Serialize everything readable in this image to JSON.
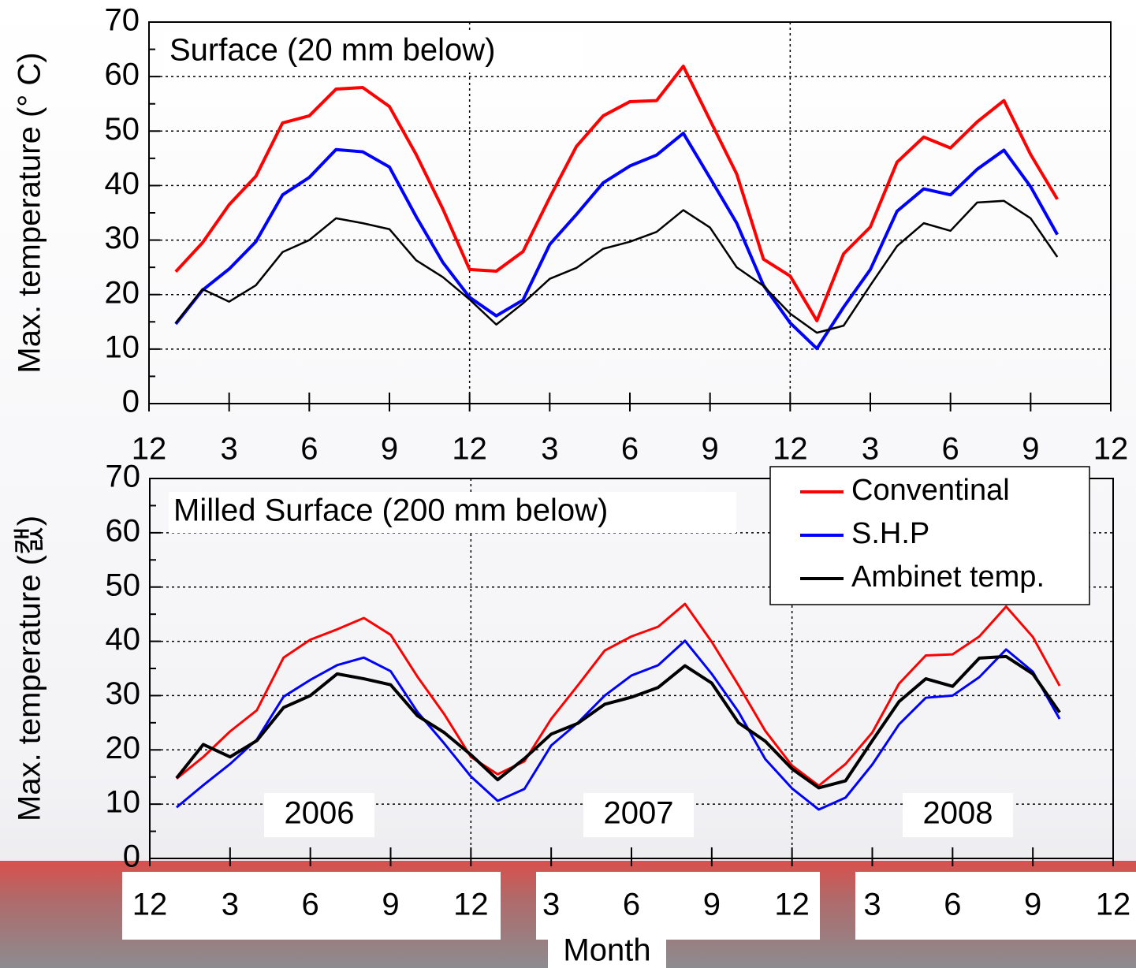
{
  "chart_data": [
    {
      "type": "line",
      "ylabel": "Max. temperature (° C)",
      "annotation": "Surface (20 mm below)",
      "x": [
        1,
        2,
        3,
        4,
        5,
        6,
        7,
        8,
        9,
        10,
        11,
        12,
        13,
        14,
        15,
        16,
        17,
        18,
        19,
        20,
        21,
        22,
        23,
        24,
        25,
        26,
        27,
        28,
        29,
        30,
        31,
        32,
        33,
        34
      ],
      "series": [
        {
          "color": "#ff0000",
          "values": [
            24.2,
            29.5,
            36.5,
            41.7,
            51.5,
            52.8,
            57.7,
            58,
            54.5,
            45.7,
            35.7,
            24.6,
            24.3,
            27.9,
            37.8,
            47.2,
            52.8,
            55.4,
            55.6,
            61.9,
            52,
            42.1,
            26.5,
            23.4,
            15.2,
            27.5,
            32.4,
            44.3,
            48.9,
            46.9,
            51.7,
            55.6,
            45.7,
            37.5
          ]
        },
        {
          "color": "#0000ff",
          "values": [
            14.6,
            20.8,
            24.7,
            29.7,
            38.3,
            41.5,
            46.6,
            46.2,
            43.4,
            34.3,
            25.9,
            19.5,
            16.1,
            19,
            29.2,
            34.7,
            40.5,
            43.6,
            45.6,
            49.6,
            41.4,
            33.1,
            21.7,
            14.8,
            10.1,
            17.7,
            24.6,
            35.3,
            39.4,
            38.3,
            43,
            46.5,
            39.8,
            31
          ]
        },
        {
          "color": "#000000",
          "values": [
            14.8,
            21,
            18.7,
            21.7,
            27.8,
            30,
            34,
            33.1,
            32,
            26.3,
            23.2,
            19.1,
            14.5,
            18.4,
            22.9,
            24.9,
            28.4,
            29.7,
            31.5,
            35.5,
            32.3,
            25,
            21.6,
            16.5,
            13,
            14.3,
            21.7,
            28.9,
            33.1,
            31.7,
            36.9,
            37.2,
            34,
            26.9
          ]
        }
      ],
      "xlim": [
        0,
        36
      ],
      "xticks": [
        {
          "value": 0,
          "label": "12"
        },
        {
          "value": 3,
          "label": "3"
        },
        {
          "value": 6,
          "label": "6"
        },
        {
          "value": 9,
          "label": "9"
        },
        {
          "value": 12,
          "label": "12"
        },
        {
          "value": 15,
          "label": "3"
        },
        {
          "value": 18,
          "label": "6"
        },
        {
          "value": 21,
          "label": "9"
        },
        {
          "value": 24,
          "label": "12"
        },
        {
          "value": 27,
          "label": "3"
        },
        {
          "value": 30,
          "label": "6"
        },
        {
          "value": 33,
          "label": "9"
        },
        {
          "value": 36,
          "label": "12"
        }
      ],
      "ylim": [
        0,
        70
      ],
      "yticks": [
        0,
        10,
        20,
        30,
        40,
        50,
        60,
        70
      ],
      "xgrid": [
        12,
        24
      ],
      "grid": true
    },
    {
      "type": "line",
      "ylabel": "Max. temperature (캜)",
      "xlabel": "Month",
      "annotation": "Milled Surface (200 mm below)",
      "year_labels": [
        "2006",
        "2007",
        "2008"
      ],
      "x": [
        1,
        2,
        3,
        4,
        5,
        6,
        7,
        8,
        9,
        10,
        11,
        12,
        13,
        14,
        15,
        16,
        17,
        18,
        19,
        20,
        21,
        22,
        23,
        24,
        25,
        26,
        27,
        28,
        29,
        30,
        31,
        32,
        33,
        34
      ],
      "series": [
        {
          "name": "Conventinal",
          "color": "#ff0000",
          "values": [
            14.7,
            18.7,
            23.4,
            27.3,
            37,
            40.3,
            42.2,
            44.3,
            41.2,
            33.5,
            26.6,
            18.7,
            15.5,
            17.9,
            25.7,
            31.9,
            38.3,
            40.9,
            42.7,
            46.9,
            39.9,
            31.9,
            23.5,
            17.1,
            13.4,
            17.4,
            23.2,
            32.2,
            37.4,
            37.6,
            40.9,
            46.4,
            40.8,
            31.8
          ]
        },
        {
          "name": "S.H.P",
          "color": "#0000ff",
          "values": [
            9.4,
            13.5,
            17.4,
            21.9,
            29.8,
            32.9,
            35.6,
            37,
            34.5,
            27,
            21.2,
            15.1,
            10.6,
            12.8,
            20.8,
            25,
            30,
            33.7,
            35.6,
            40.1,
            34,
            27,
            18.3,
            12.9,
            9,
            11.2,
            17.3,
            24.7,
            29.6,
            30,
            33.4,
            38.5,
            34.4,
            25.7
          ]
        },
        {
          "name": "Ambinet temp.",
          "color": "#000000",
          "values": [
            14.8,
            21,
            18.7,
            21.7,
            27.8,
            30,
            34,
            33.1,
            32,
            26.3,
            23.2,
            19.1,
            14.5,
            18.4,
            22.9,
            24.9,
            28.4,
            29.7,
            31.5,
            35.5,
            32.3,
            25,
            21.6,
            16.5,
            13,
            14.3,
            21.7,
            28.9,
            33.1,
            31.7,
            36.9,
            37.2,
            34,
            26.9
          ]
        }
      ],
      "xlim": [
        0,
        36
      ],
      "xticks": [
        {
          "value": 0,
          "label": "12"
        },
        {
          "value": 3,
          "label": "3"
        },
        {
          "value": 6,
          "label": "6"
        },
        {
          "value": 9,
          "label": "9"
        },
        {
          "value": 12,
          "label": "12"
        },
        {
          "value": 15,
          "label": "3"
        },
        {
          "value": 18,
          "label": "6"
        },
        {
          "value": 21,
          "label": "9"
        },
        {
          "value": 24,
          "label": "12"
        },
        {
          "value": 27,
          "label": "3"
        },
        {
          "value": 30,
          "label": "6"
        },
        {
          "value": 33,
          "label": "9"
        },
        {
          "value": 36,
          "label": "12"
        }
      ],
      "ylim": [
        0,
        70
      ],
      "yticks": [
        0,
        10,
        20,
        30,
        40,
        50,
        60,
        70
      ],
      "xgrid": [
        12,
        24
      ],
      "grid": true,
      "legend": "top-right"
    }
  ]
}
